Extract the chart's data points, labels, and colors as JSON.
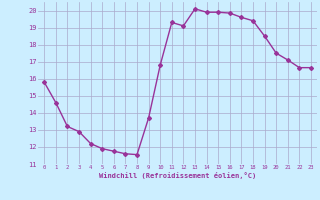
{
  "x": [
    0,
    1,
    2,
    3,
    4,
    5,
    6,
    7,
    8,
    9,
    10,
    11,
    12,
    13,
    14,
    15,
    16,
    17,
    18,
    19,
    20,
    21,
    22,
    23
  ],
  "y": [
    15.8,
    14.6,
    13.2,
    12.9,
    12.2,
    11.9,
    11.75,
    11.6,
    11.55,
    13.7,
    16.8,
    19.3,
    19.1,
    20.1,
    19.9,
    19.9,
    19.85,
    19.6,
    19.4,
    18.5,
    17.5,
    17.1,
    16.65,
    16.65
  ],
  "line_color": "#993399",
  "marker": "D",
  "markersize": 2,
  "linewidth": 1.0,
  "bg_color": "#cceeff",
  "grid_color": "#aaaacc",
  "xlabel": "Windchill (Refroidissement éolien,°C)",
  "xlabel_color": "#993399",
  "tick_color": "#993399",
  "ylim": [
    11,
    20.5
  ],
  "yticks": [
    11,
    12,
    13,
    14,
    15,
    16,
    17,
    18,
    19,
    20
  ],
  "xlim": [
    -0.5,
    23.5
  ],
  "xticks": [
    0,
    1,
    2,
    3,
    4,
    5,
    6,
    7,
    8,
    9,
    10,
    11,
    12,
    13,
    14,
    15,
    16,
    17,
    18,
    19,
    20,
    21,
    22,
    23
  ]
}
